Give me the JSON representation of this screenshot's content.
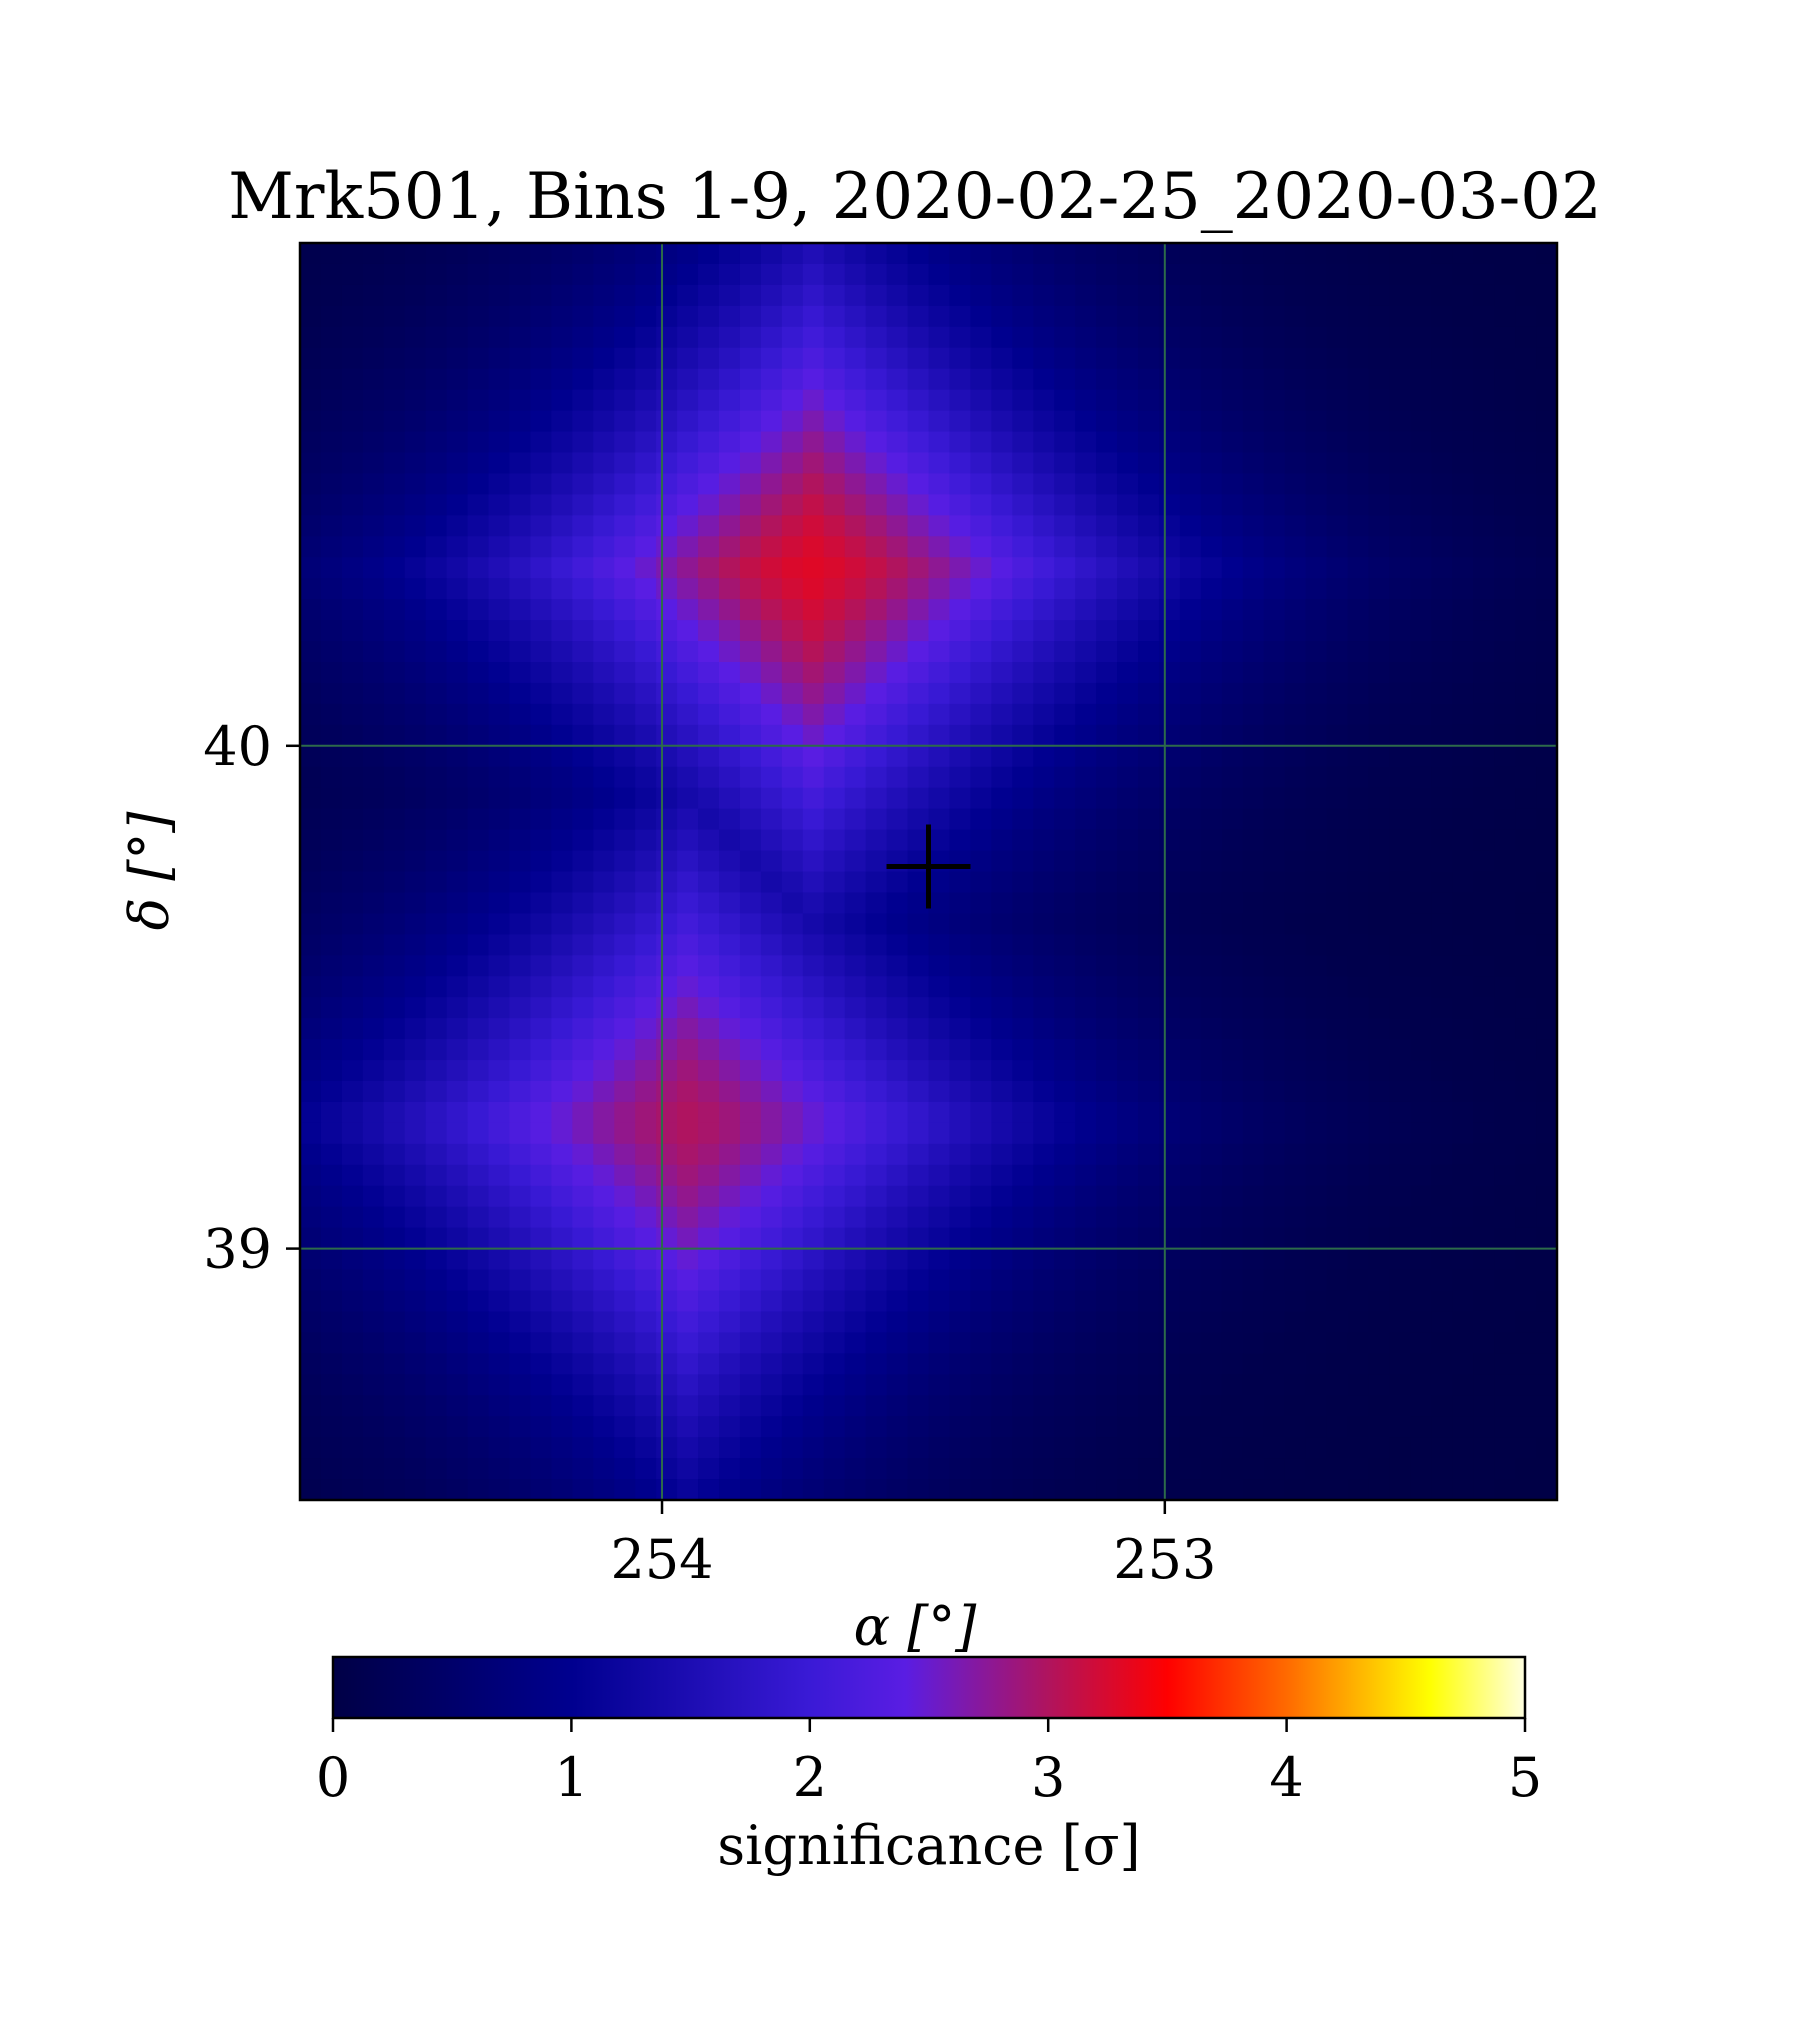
{
  "chart_data": {
    "type": "heatmap",
    "title": "Mrk501, Bins 1-9, 2020-02-25_2020-03-02",
    "xlabel": "α [°]",
    "ylabel": "δ [°]",
    "xlim": [
      254.72,
      252.22
    ],
    "ylim": [
      38.5,
      41.0
    ],
    "x_axis_inverted": true,
    "xticks": [
      {
        "value": 254,
        "label": "254"
      },
      {
        "value": 253,
        "label": "253"
      }
    ],
    "yticks": [
      {
        "value": 40,
        "label": "40"
      },
      {
        "value": 39,
        "label": "39"
      }
    ],
    "grid": true,
    "grid_color": "#2d6b4a",
    "pixel_grid": {
      "nx": 60,
      "ny": 60
    },
    "blobs": [
      {
        "ra": 253.7,
        "dec": 40.35,
        "peak": 3.3
      },
      {
        "ra": 253.95,
        "dec": 39.25,
        "peak": 3.0
      }
    ],
    "marker": {
      "ra": 253.47,
      "dec": 39.76,
      "symbol": "+",
      "color": "#000000"
    },
    "colorbar": {
      "label": "significance [σ]",
      "min": 0,
      "max": 5,
      "ticks": [
        "0",
        "1",
        "2",
        "3",
        "4",
        "5"
      ],
      "colormap": "gnuplot2",
      "stops": [
        {
          "v": 0.0,
          "color": "#000046"
        },
        {
          "v": 1.0,
          "color": "#00008f"
        },
        {
          "v": 2.0,
          "color": "#3a1ad6"
        },
        {
          "v": 2.4,
          "color": "#5a1de3"
        },
        {
          "v": 3.0,
          "color": "#b0145e"
        },
        {
          "v": 3.5,
          "color": "#ff0000"
        },
        {
          "v": 4.0,
          "color": "#ff6a00"
        },
        {
          "v": 4.6,
          "color": "#ffff00"
        },
        {
          "v": 5.0,
          "color": "#ffffe0"
        }
      ]
    }
  }
}
